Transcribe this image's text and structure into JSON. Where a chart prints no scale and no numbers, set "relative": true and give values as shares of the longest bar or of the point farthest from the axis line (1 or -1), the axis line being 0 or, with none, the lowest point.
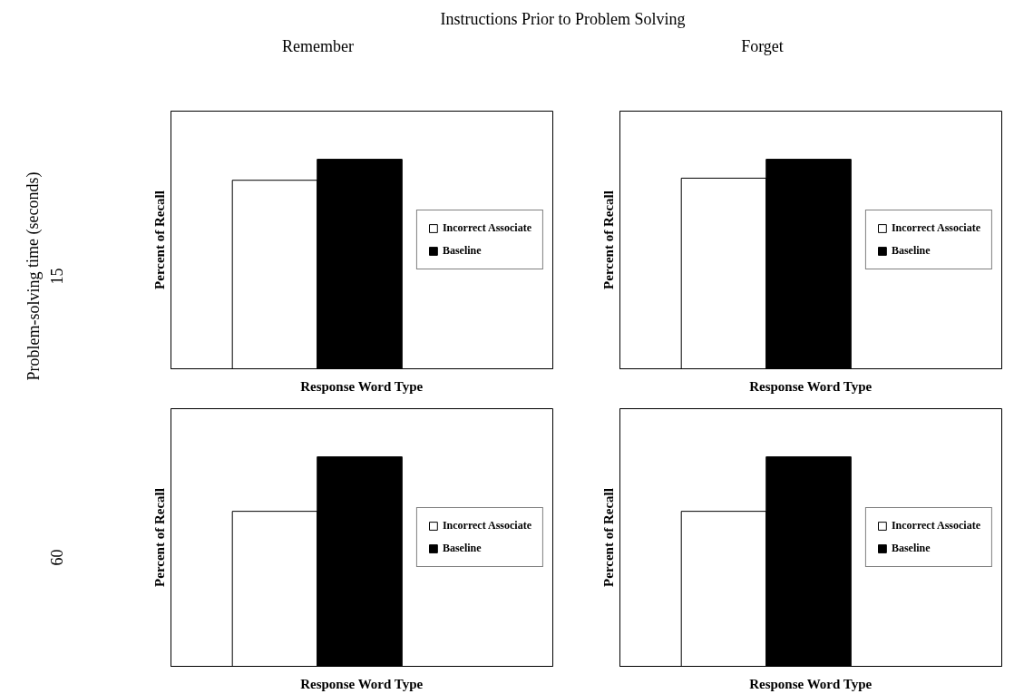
{
  "chart_data": [
    {
      "type": "bar",
      "relative": true,
      "categories": [
        null
      ],
      "xlabel": "Response Word Type",
      "ylabel": "Percent of Recall",
      "legend": "right",
      "annotations": [
        "Instructions Prior to Problem Solving",
        "Remember",
        "Problem-solving time (seconds)",
        "15"
      ],
      "series": [
        {
          "name": "Incorrect Associate",
          "color": "#ffffff",
          "values": [
            0.9
          ]
        },
        {
          "name": "Baseline",
          "color": "#000000",
          "values": [
            1
          ]
        }
      ]
    },
    {
      "type": "bar",
      "relative": true,
      "categories": [
        null
      ],
      "xlabel": "Response Word Type",
      "ylabel": "Percent of Recall",
      "legend": "right",
      "annotations": [
        "Forget"
      ],
      "series": [
        {
          "name": "Incorrect Associate",
          "color": "#ffffff",
          "values": [
            0.91
          ]
        },
        {
          "name": "Baseline",
          "color": "#000000",
          "values": [
            1
          ]
        }
      ]
    },
    {
      "type": "bar",
      "relative": true,
      "categories": [
        null
      ],
      "xlabel": "Response Word Type",
      "ylabel": "Percent of Recall",
      "legend": "right",
      "annotations": [
        "60"
      ],
      "series": [
        {
          "name": "Incorrect Associate",
          "color": "#ffffff",
          "values": [
            0.74
          ]
        },
        {
          "name": "Baseline",
          "color": "#000000",
          "values": [
            1
          ]
        }
      ]
    },
    {
      "type": "bar",
      "relative": true,
      "categories": [
        null
      ],
      "xlabel": "Response Word Type",
      "ylabel": "Percent of Recall",
      "legend": "right",
      "series": [
        {
          "name": "Incorrect Associate",
          "color": "#ffffff",
          "values": [
            0.74
          ]
        },
        {
          "name": "Baseline",
          "color": "#000000",
          "values": [
            1
          ]
        }
      ]
    }
  ]
}
